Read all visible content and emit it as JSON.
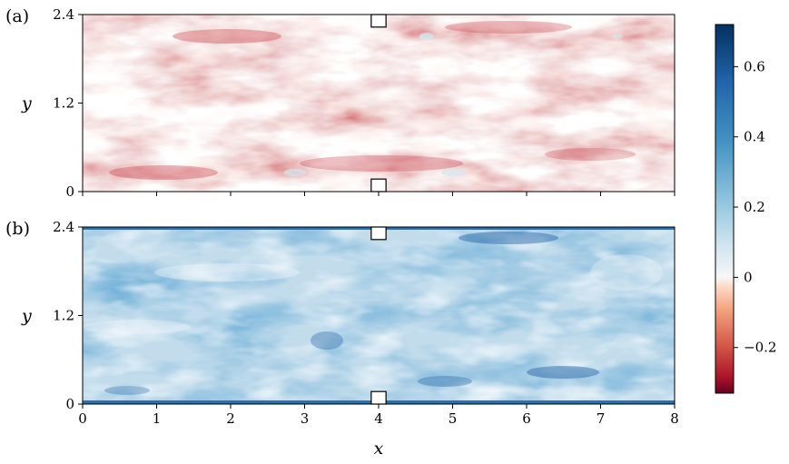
{
  "chart_data": [
    {
      "type": "heatmap",
      "panel_label": "(a)",
      "xlabel": "",
      "ylabel": "y",
      "xlim": [
        0,
        8
      ],
      "ylim": [
        0,
        2.4
      ],
      "yticks": [
        0,
        1.2,
        2.4
      ],
      "ytick_labels": [
        "0",
        "1.2",
        "2.4"
      ],
      "obstacles": [
        {
          "x": [
            3.9,
            4.1
          ],
          "y": [
            2.23,
            2.4
          ]
        },
        {
          "x": [
            3.9,
            4.1
          ],
          "y": [
            0,
            0.17
          ]
        }
      ],
      "field_range": [
        -0.3,
        0.25
      ],
      "field_mean": -0.1
    },
    {
      "type": "heatmap",
      "panel_label": "(b)",
      "xlabel": "x",
      "ylabel": "y",
      "xlim": [
        0,
        8
      ],
      "ylim": [
        0,
        2.4
      ],
      "xticks": [
        0,
        1,
        2,
        3,
        4,
        5,
        6,
        7,
        8
      ],
      "xtick_labels": [
        "0",
        "1",
        "2",
        "3",
        "4",
        "5",
        "6",
        "7",
        "8"
      ],
      "yticks": [
        0,
        1.2,
        2.4
      ],
      "ytick_labels": [
        "0",
        "1.2",
        "2.4"
      ],
      "obstacles": [
        {
          "x": [
            3.9,
            4.1
          ],
          "y": [
            2.23,
            2.4
          ]
        },
        {
          "x": [
            3.9,
            4.1
          ],
          "y": [
            0,
            0.17
          ]
        }
      ],
      "field_range": [
        0.05,
        0.7
      ],
      "field_mean": 0.25
    }
  ],
  "colorbar": {
    "vmin": -0.33,
    "vmax": 0.72,
    "ticks": [
      -0.2,
      0,
      0.2,
      0.4,
      0.6
    ],
    "tick_labels": [
      "−0.2",
      "0",
      "0.2",
      "0.4",
      "0.6"
    ],
    "colormap": [
      "#67001f",
      "#b2182b",
      "#d6604d",
      "#f4a582",
      "#fddbc7",
      "#f7f7f7",
      "#d1e5f0",
      "#92c5de",
      "#4393c3",
      "#2166ac",
      "#053061"
    ]
  }
}
